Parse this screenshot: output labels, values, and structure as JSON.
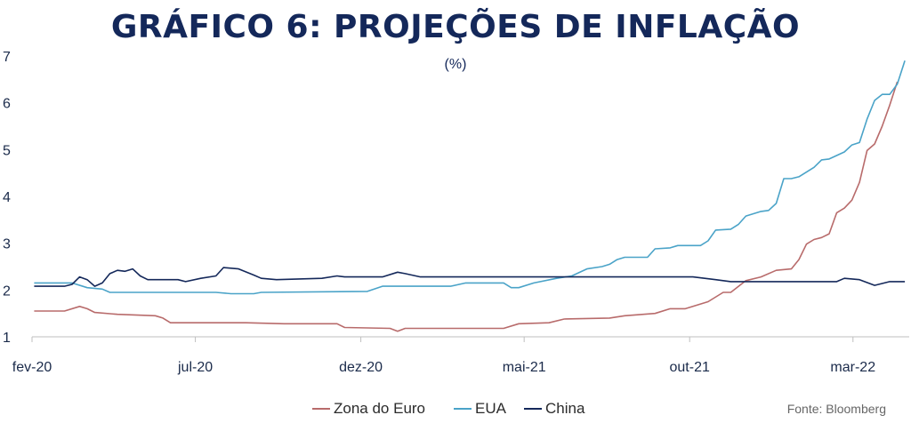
{
  "title": "GRÁFICO 6: PROJEÇÕES DE INFLAÇÃO",
  "subtitle": "(%)",
  "source": "Fonte: Bloomberg",
  "chart_data": {
    "type": "line",
    "title": "GRÁFICO 6: PROJEÇÕES DE INFLAÇÃO",
    "ylabel": "(%)",
    "ylim": [
      1,
      7
    ],
    "yticks": [
      "1",
      "2",
      "3",
      "4",
      "5",
      "6",
      "7"
    ],
    "xticks": [
      "fev-20",
      "jul-20",
      "dez-20",
      "mai-21",
      "out-21",
      "mar-22"
    ],
    "grid": false,
    "legend": "bottom",
    "series": [
      {
        "name": "Zona do Euro",
        "color": "#b86b6b",
        "points": [
          [
            "2020-02-03",
            1.55
          ],
          [
            "2020-02-24",
            1.55
          ],
          [
            "2020-03-02",
            1.55
          ],
          [
            "2020-03-16",
            1.65
          ],
          [
            "2020-03-23",
            1.6
          ],
          [
            "2020-03-30",
            1.52
          ],
          [
            "2020-04-20",
            1.48
          ],
          [
            "2020-05-25",
            1.45
          ],
          [
            "2020-06-01",
            1.4
          ],
          [
            "2020-06-08",
            1.3
          ],
          [
            "2020-07-06",
            1.3
          ],
          [
            "2020-08-10",
            1.3
          ],
          [
            "2020-08-17",
            1.3
          ],
          [
            "2020-09-21",
            1.28
          ],
          [
            "2020-11-09",
            1.28
          ],
          [
            "2020-11-16",
            1.2
          ],
          [
            "2020-12-28",
            1.18
          ],
          [
            "2021-01-04",
            1.12
          ],
          [
            "2021-01-11",
            1.18
          ],
          [
            "2021-04-12",
            1.18
          ],
          [
            "2021-04-26",
            1.28
          ],
          [
            "2021-05-24",
            1.3
          ],
          [
            "2021-06-07",
            1.38
          ],
          [
            "2021-07-19",
            1.4
          ],
          [
            "2021-08-02",
            1.45
          ],
          [
            "2021-08-30",
            1.5
          ],
          [
            "2021-09-13",
            1.6
          ],
          [
            "2021-09-27",
            1.6
          ],
          [
            "2021-10-18",
            1.75
          ],
          [
            "2021-11-01",
            1.95
          ],
          [
            "2021-11-08",
            1.95
          ],
          [
            "2021-11-22",
            2.2
          ],
          [
            "2021-12-06",
            2.28
          ],
          [
            "2021-12-20",
            2.42
          ],
          [
            "2022-01-03",
            2.45
          ],
          [
            "2022-01-10",
            2.65
          ],
          [
            "2022-01-17",
            2.98
          ],
          [
            "2022-01-24",
            3.08
          ],
          [
            "2022-01-31",
            3.12
          ],
          [
            "2022-02-07",
            3.2
          ],
          [
            "2022-02-14",
            3.65
          ],
          [
            "2022-02-21",
            3.75
          ],
          [
            "2022-02-28",
            3.92
          ],
          [
            "2022-03-07",
            4.3
          ],
          [
            "2022-03-14",
            4.98
          ],
          [
            "2022-03-21",
            5.12
          ],
          [
            "2022-03-28",
            5.5
          ],
          [
            "2022-04-04",
            5.95
          ],
          [
            "2022-04-11",
            6.45
          ]
        ]
      },
      {
        "name": "EUA",
        "color": "#4aa3c8",
        "points": [
          [
            "2020-02-03",
            2.15
          ],
          [
            "2020-03-09",
            2.15
          ],
          [
            "2020-03-23",
            2.05
          ],
          [
            "2020-04-06",
            2.02
          ],
          [
            "2020-04-13",
            1.95
          ],
          [
            "2020-07-20",
            1.95
          ],
          [
            "2020-08-03",
            1.92
          ],
          [
            "2020-08-24",
            1.92
          ],
          [
            "2020-08-31",
            1.95
          ],
          [
            "2020-12-07",
            1.97
          ],
          [
            "2020-12-21",
            2.08
          ],
          [
            "2021-02-22",
            2.08
          ],
          [
            "2021-03-08",
            2.15
          ],
          [
            "2021-04-12",
            2.15
          ],
          [
            "2021-04-19",
            2.05
          ],
          [
            "2021-04-26",
            2.05
          ],
          [
            "2021-05-10",
            2.15
          ],
          [
            "2021-05-31",
            2.25
          ],
          [
            "2021-06-14",
            2.3
          ],
          [
            "2021-06-28",
            2.45
          ],
          [
            "2021-07-12",
            2.5
          ],
          [
            "2021-07-19",
            2.55
          ],
          [
            "2021-07-26",
            2.65
          ],
          [
            "2021-08-02",
            2.7
          ],
          [
            "2021-08-23",
            2.7
          ],
          [
            "2021-08-30",
            2.88
          ],
          [
            "2021-09-13",
            2.9
          ],
          [
            "2021-09-20",
            2.95
          ],
          [
            "2021-10-11",
            2.95
          ],
          [
            "2021-10-18",
            3.05
          ],
          [
            "2021-10-25",
            3.28
          ],
          [
            "2021-11-08",
            3.3
          ],
          [
            "2021-11-15",
            3.4
          ],
          [
            "2021-11-22",
            3.58
          ],
          [
            "2021-12-06",
            3.68
          ],
          [
            "2021-12-13",
            3.7
          ],
          [
            "2021-12-20",
            3.85
          ],
          [
            "2021-12-27",
            4.38
          ],
          [
            "2022-01-03",
            4.38
          ],
          [
            "2022-01-10",
            4.42
          ],
          [
            "2022-01-24",
            4.62
          ],
          [
            "2022-01-31",
            4.78
          ],
          [
            "2022-02-07",
            4.8
          ],
          [
            "2022-02-21",
            4.95
          ],
          [
            "2022-02-28",
            5.1
          ],
          [
            "2022-03-07",
            5.15
          ],
          [
            "2022-03-14",
            5.65
          ],
          [
            "2022-03-21",
            6.05
          ],
          [
            "2022-03-28",
            6.18
          ],
          [
            "2022-04-04",
            6.18
          ],
          [
            "2022-04-11",
            6.4
          ],
          [
            "2022-04-18",
            6.9
          ]
        ]
      },
      {
        "name": "China",
        "color": "#14285a",
        "points": [
          [
            "2020-02-03",
            2.08
          ],
          [
            "2020-03-02",
            2.08
          ],
          [
            "2020-03-09",
            2.12
          ],
          [
            "2020-03-16",
            2.28
          ],
          [
            "2020-03-23",
            2.22
          ],
          [
            "2020-03-30",
            2.08
          ],
          [
            "2020-04-06",
            2.15
          ],
          [
            "2020-04-13",
            2.35
          ],
          [
            "2020-04-20",
            2.42
          ],
          [
            "2020-04-27",
            2.4
          ],
          [
            "2020-05-04",
            2.45
          ],
          [
            "2020-05-11",
            2.3
          ],
          [
            "2020-05-18",
            2.22
          ],
          [
            "2020-06-15",
            2.22
          ],
          [
            "2020-06-22",
            2.18
          ],
          [
            "2020-07-06",
            2.25
          ],
          [
            "2020-07-20",
            2.3
          ],
          [
            "2020-07-27",
            2.48
          ],
          [
            "2020-08-10",
            2.45
          ],
          [
            "2020-08-24",
            2.32
          ],
          [
            "2020-08-31",
            2.25
          ],
          [
            "2020-09-14",
            2.22
          ],
          [
            "2020-10-26",
            2.25
          ],
          [
            "2020-11-09",
            2.3
          ],
          [
            "2020-11-16",
            2.28
          ],
          [
            "2020-12-21",
            2.28
          ],
          [
            "2021-01-04",
            2.38
          ],
          [
            "2021-01-11",
            2.35
          ],
          [
            "2021-01-25",
            2.28
          ],
          [
            "2021-10-04",
            2.28
          ],
          [
            "2021-10-25",
            2.22
          ],
          [
            "2021-11-08",
            2.18
          ],
          [
            "2022-02-14",
            2.18
          ],
          [
            "2022-02-21",
            2.25
          ],
          [
            "2022-03-07",
            2.22
          ],
          [
            "2022-03-21",
            2.1
          ],
          [
            "2022-04-04",
            2.18
          ],
          [
            "2022-04-18",
            2.18
          ]
        ]
      }
    ]
  }
}
